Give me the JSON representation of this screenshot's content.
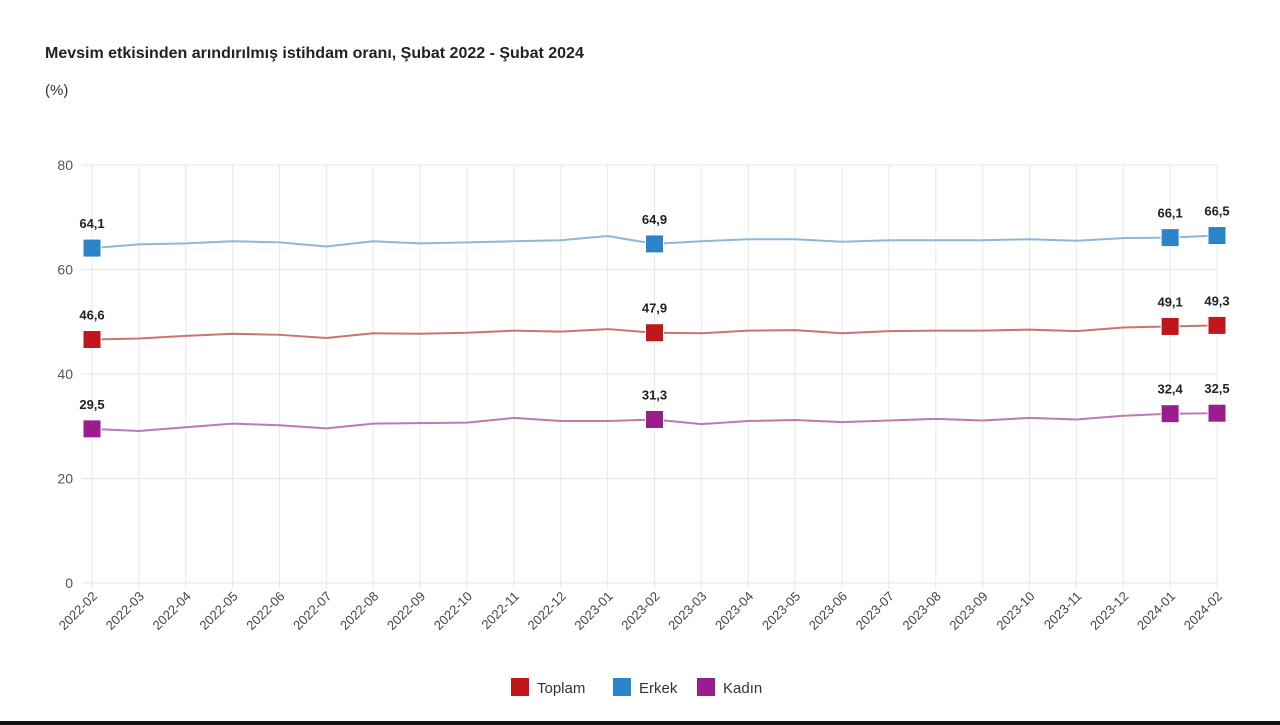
{
  "chart_data": {
    "type": "line",
    "title": "Mevsim etkisinden arındırılmış istihdam oranı, Şubat 2022 - Şubat 2024",
    "subtitle": "(%)",
    "xlabel": "",
    "ylabel": "",
    "ylim": [
      0,
      80
    ],
    "yticks": [
      0,
      20,
      40,
      60,
      80
    ],
    "grid": true,
    "legend": "bottom",
    "categories": [
      "2022-02",
      "2022-03",
      "2022-04",
      "2022-05",
      "2022-06",
      "2022-07",
      "2022-08",
      "2022-09",
      "2022-10",
      "2022-11",
      "2022-12",
      "2023-01",
      "2023-02",
      "2023-03",
      "2023-04",
      "2023-05",
      "2023-06",
      "2023-07",
      "2023-08",
      "2023-09",
      "2023-10",
      "2023-11",
      "2023-12",
      "2024-01",
      "2024-02"
    ],
    "labeled_points": [
      0,
      12,
      23,
      24
    ],
    "series": [
      {
        "name": "Toplam",
        "color": "#c0161c",
        "line_color": "#c87474",
        "values": [
          46.6,
          46.8,
          47.3,
          47.7,
          47.5,
          46.9,
          47.8,
          47.7,
          47.9,
          48.3,
          48.1,
          48.6,
          47.9,
          47.8,
          48.3,
          48.4,
          47.8,
          48.2,
          48.3,
          48.3,
          48.5,
          48.2,
          48.9,
          49.1,
          49.3
        ],
        "labels": [
          "46,6",
          "47,9",
          "49,1",
          "49,3"
        ]
      },
      {
        "name": "Erkek",
        "color": "#2b84c9",
        "line_color": "#8db8d6",
        "values": [
          64.1,
          64.8,
          65.0,
          65.4,
          65.2,
          64.4,
          65.4,
          65.0,
          65.2,
          65.4,
          65.6,
          66.4,
          64.9,
          65.4,
          65.8,
          65.8,
          65.3,
          65.6,
          65.6,
          65.6,
          65.8,
          65.5,
          66.0,
          66.1,
          66.5
        ],
        "labels": [
          "64,1",
          "64,9",
          "66,1",
          "66,5"
        ]
      },
      {
        "name": "Kadın",
        "color": "#9a1d8d",
        "line_color": "#b97bb2",
        "values": [
          29.5,
          29.1,
          29.8,
          30.5,
          30.2,
          29.6,
          30.5,
          30.6,
          30.7,
          31.6,
          31.0,
          31.0,
          31.3,
          30.4,
          31.0,
          31.2,
          30.8,
          31.1,
          31.4,
          31.1,
          31.6,
          31.3,
          32.0,
          32.4,
          32.5
        ],
        "labels": [
          "29,5",
          "31,3",
          "32,4",
          "32,5"
        ]
      }
    ]
  }
}
